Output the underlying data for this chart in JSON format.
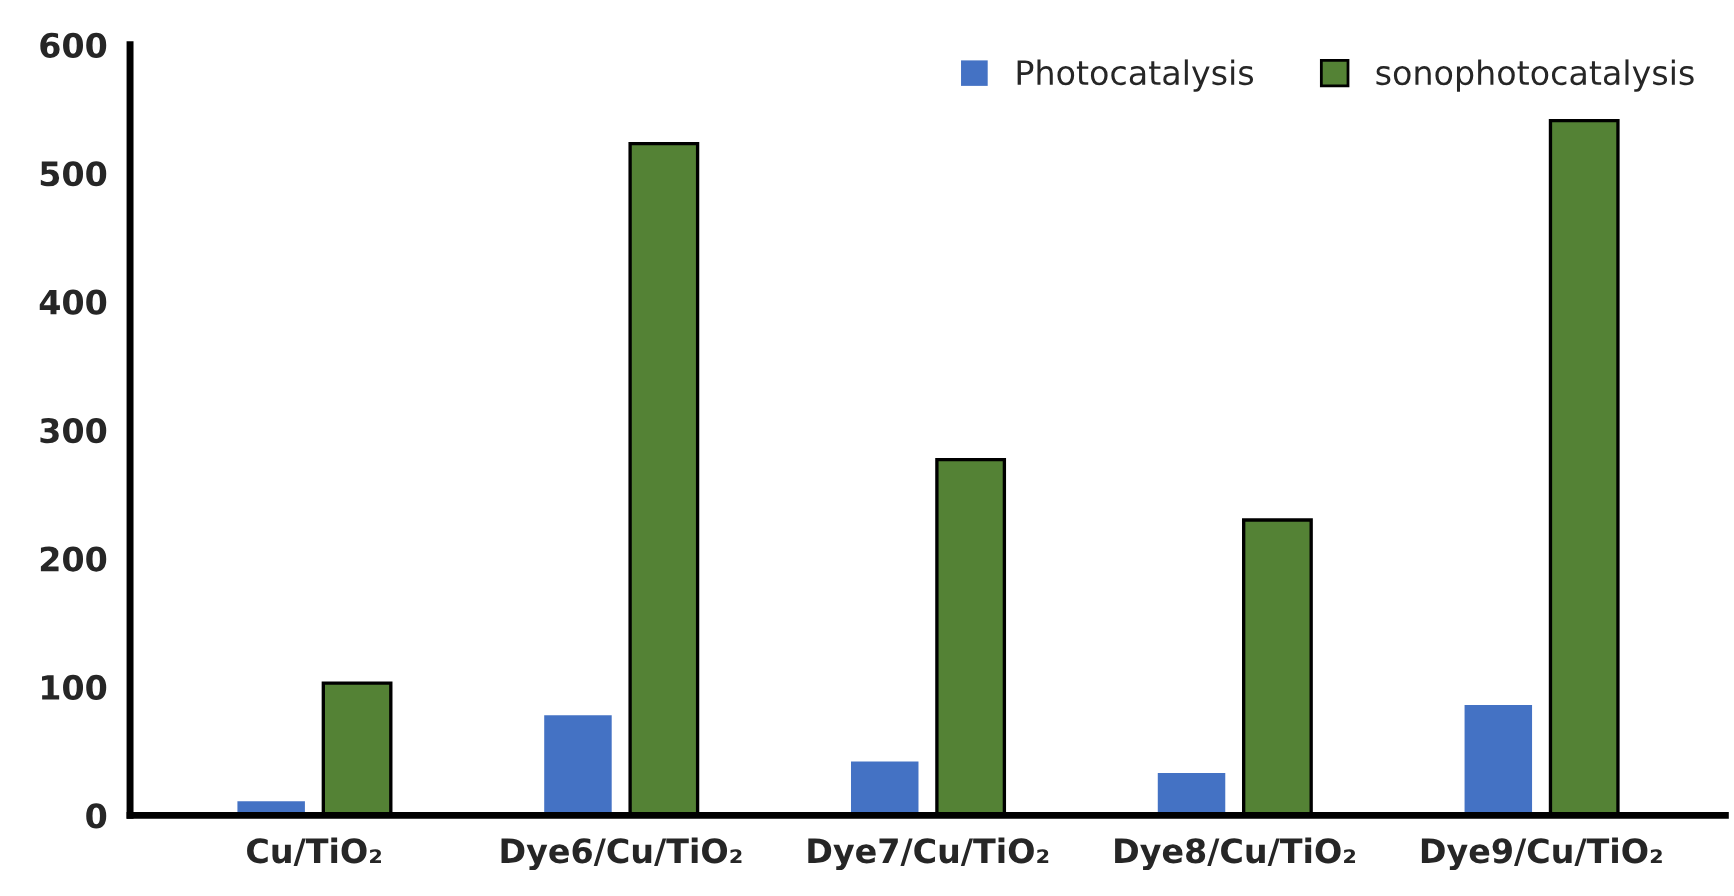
{
  "chart_data": {
    "type": "bar",
    "categories": [
      "Cu/TiO₂",
      "Dye6/Cu/TiO₂",
      "Dye7/Cu/TiO₂",
      "Dye8/Cu/TiO₂",
      "Dye9/Cu/TiO₂"
    ],
    "series": [
      {
        "name": "Photocatalysis",
        "color": "#4472c4",
        "values": [
          11,
          78,
          42,
          33,
          86
        ]
      },
      {
        "name": "sonophotocatalysis",
        "color": "#548235",
        "values": [
          103,
          523,
          277,
          230,
          541
        ]
      }
    ],
    "ylim": [
      0,
      600
    ],
    "yticks": [
      0,
      100,
      200,
      300,
      400,
      500,
      600
    ],
    "grid": false,
    "legend": "top right"
  }
}
